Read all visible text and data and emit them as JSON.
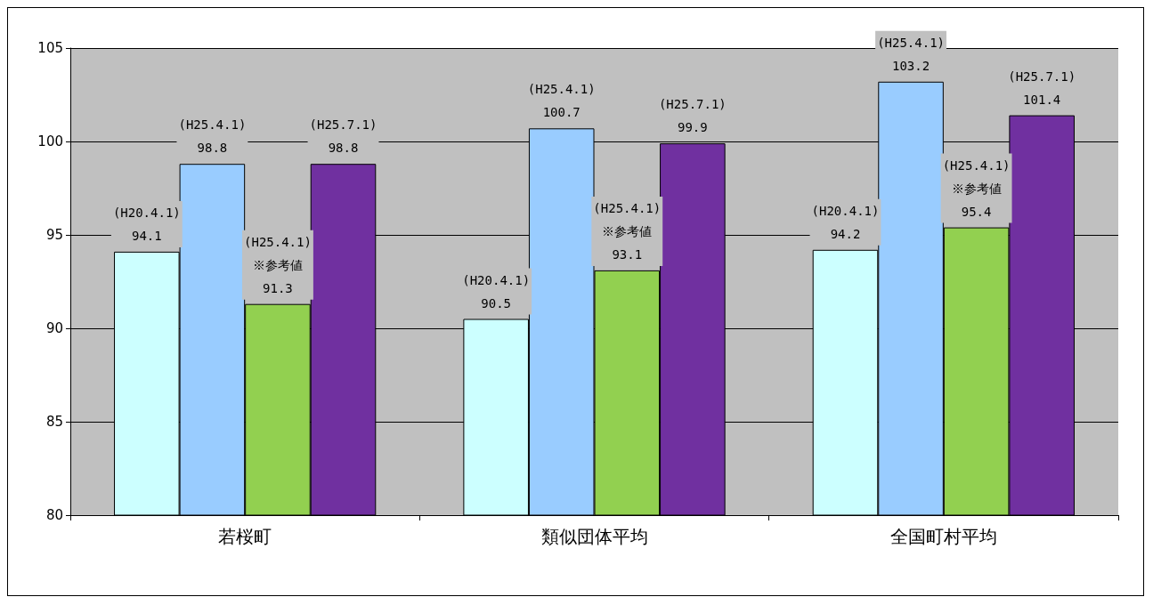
{
  "chart_data": {
    "type": "bar",
    "categories": [
      "若桜町",
      "類似団体平均",
      "全国町村平均"
    ],
    "series": [
      {
        "color": "#ccffff",
        "values": [
          94.1,
          90.5,
          94.2
        ],
        "value_labels": [
          "(H20.4.1)\n94.1",
          "(H20.4.1)\n90.5",
          "(H20.4.1)\n94.2"
        ]
      },
      {
        "color": "#99ccff",
        "values": [
          98.8,
          100.7,
          103.2
        ],
        "value_labels": [
          "(H25.4.1)\n98.8",
          "(H25.4.1)\n100.7",
          "(H25.4.1)\n103.2"
        ]
      },
      {
        "color": "#92d050",
        "values": [
          91.3,
          93.1,
          95.4
        ],
        "value_labels": [
          "(H25.4.1)\n※参考値\n91.3",
          "(H25.4.1)\n※参考値\n93.1",
          "(H25.4.1)\n※参考値\n95.4"
        ]
      },
      {
        "color": "#7030a0",
        "values": [
          98.8,
          99.9,
          101.4
        ],
        "value_labels": [
          "(H25.7.1)\n98.8",
          "(H25.7.1)\n99.9",
          "(H25.7.1)\n101.4"
        ]
      }
    ],
    "ylim": [
      80,
      105
    ],
    "yticks": [
      80,
      85,
      90,
      95,
      100,
      105
    ],
    "grid": "y"
  }
}
